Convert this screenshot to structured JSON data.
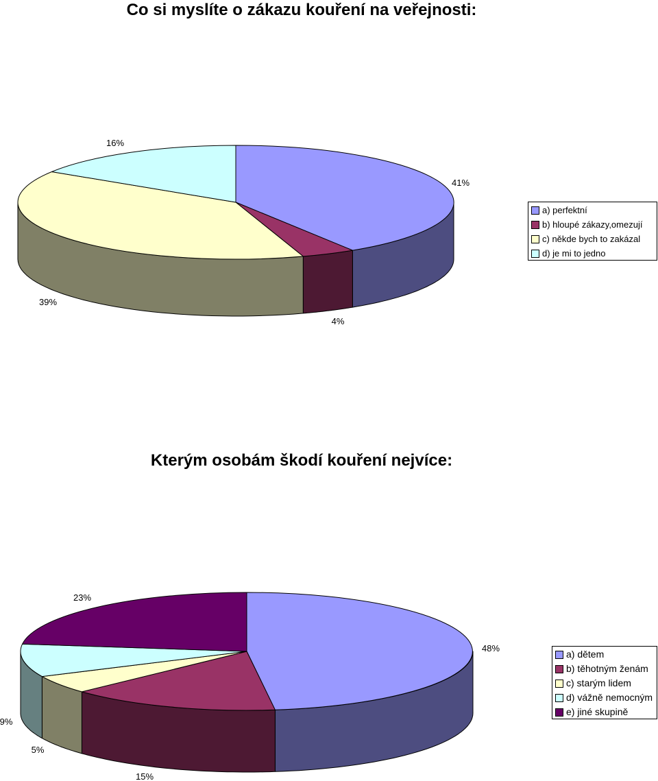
{
  "chart_data": [
    {
      "type": "pie",
      "title": "Co si myslíte o zákazu kouření na veřejnosti:",
      "categories": [
        "a) perfektní",
        "b) hloupé zákazy,omezují",
        "c) někde bych to zakázal",
        "d) je mi to jedno"
      ],
      "values": [
        41,
        4,
        39,
        16
      ],
      "labels": [
        "41%",
        "4%",
        "39%",
        "16%"
      ],
      "colors": [
        "#9999FF",
        "#993366",
        "#FFFFCC",
        "#CCFFFF"
      ],
      "side_colors": [
        "#4D4D80",
        "#4D1933",
        "#808066",
        "#668080"
      ],
      "style": "3d",
      "legend_position": "right"
    },
    {
      "type": "pie",
      "title": "Kterým osobám škodí kouření nejvíce:",
      "categories": [
        "a) dětem",
        "b) těhotným ženám",
        "c) starým lidem",
        "d) vážně nemocným",
        "e) jiné skupině"
      ],
      "values": [
        48,
        15,
        5,
        9,
        23
      ],
      "labels": [
        "48%",
        "15%",
        "5%",
        "9%",
        "23%"
      ],
      "colors": [
        "#9999FF",
        "#993366",
        "#FFFFCC",
        "#CCFFFF",
        "#660066"
      ],
      "side_colors": [
        "#4D4D80",
        "#4D1933",
        "#808066",
        "#668080",
        "#330033"
      ],
      "style": "3d",
      "legend_position": "right"
    }
  ]
}
